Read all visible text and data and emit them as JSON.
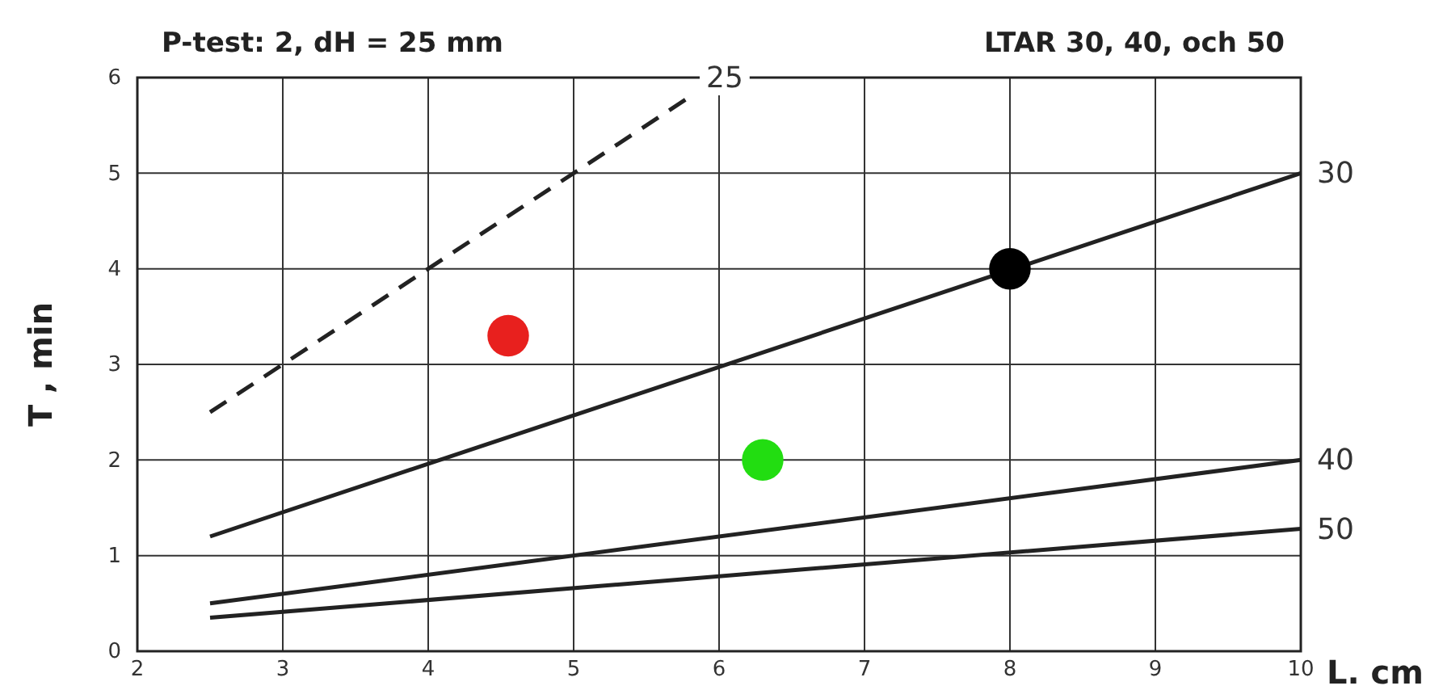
{
  "chart_data": {
    "type": "line",
    "title": "P-test: 2,  dH = 25 mm",
    "subtitle": "LTAR  30, 40, och  50",
    "xlabel": "L. cm",
    "ylabel": "T , min",
    "xlim": [
      2,
      10
    ],
    "ylim": [
      0,
      6
    ],
    "xticks": [
      2,
      3,
      4,
      5,
      6,
      7,
      8,
      9,
      10
    ],
    "yticks": [
      0,
      1,
      2,
      3,
      4,
      5,
      6
    ],
    "grid": true,
    "marker": "none",
    "series": [
      {
        "name": "25",
        "color": "#222222",
        "x": [
          2.5,
          5.8
        ],
        "values": [
          2.5,
          5.8
        ],
        "line_style": "dashed"
      },
      {
        "name": "30",
        "color": "#222222",
        "x": [
          2.5,
          10
        ],
        "values": [
          1.2,
          5
        ],
        "line_style": "solid"
      },
      {
        "name": "40",
        "color": "#222222",
        "x": [
          2.5,
          10
        ],
        "values": [
          0.5,
          2
        ],
        "line_style": "solid"
      },
      {
        "name": "50",
        "color": "#222222",
        "x": [
          2.5,
          10
        ],
        "values": [
          0.35,
          1.28
        ],
        "line_style": "solid"
      },
      {
        "type": "scatter",
        "marker": "circle",
        "x": [
          4.55,
          6.3,
          8
        ],
        "values": [
          3.3,
          2.0,
          4.0
        ],
        "colors": [
          "#e8201e",
          "#22dd11",
          "#000000"
        ]
      }
    ]
  }
}
